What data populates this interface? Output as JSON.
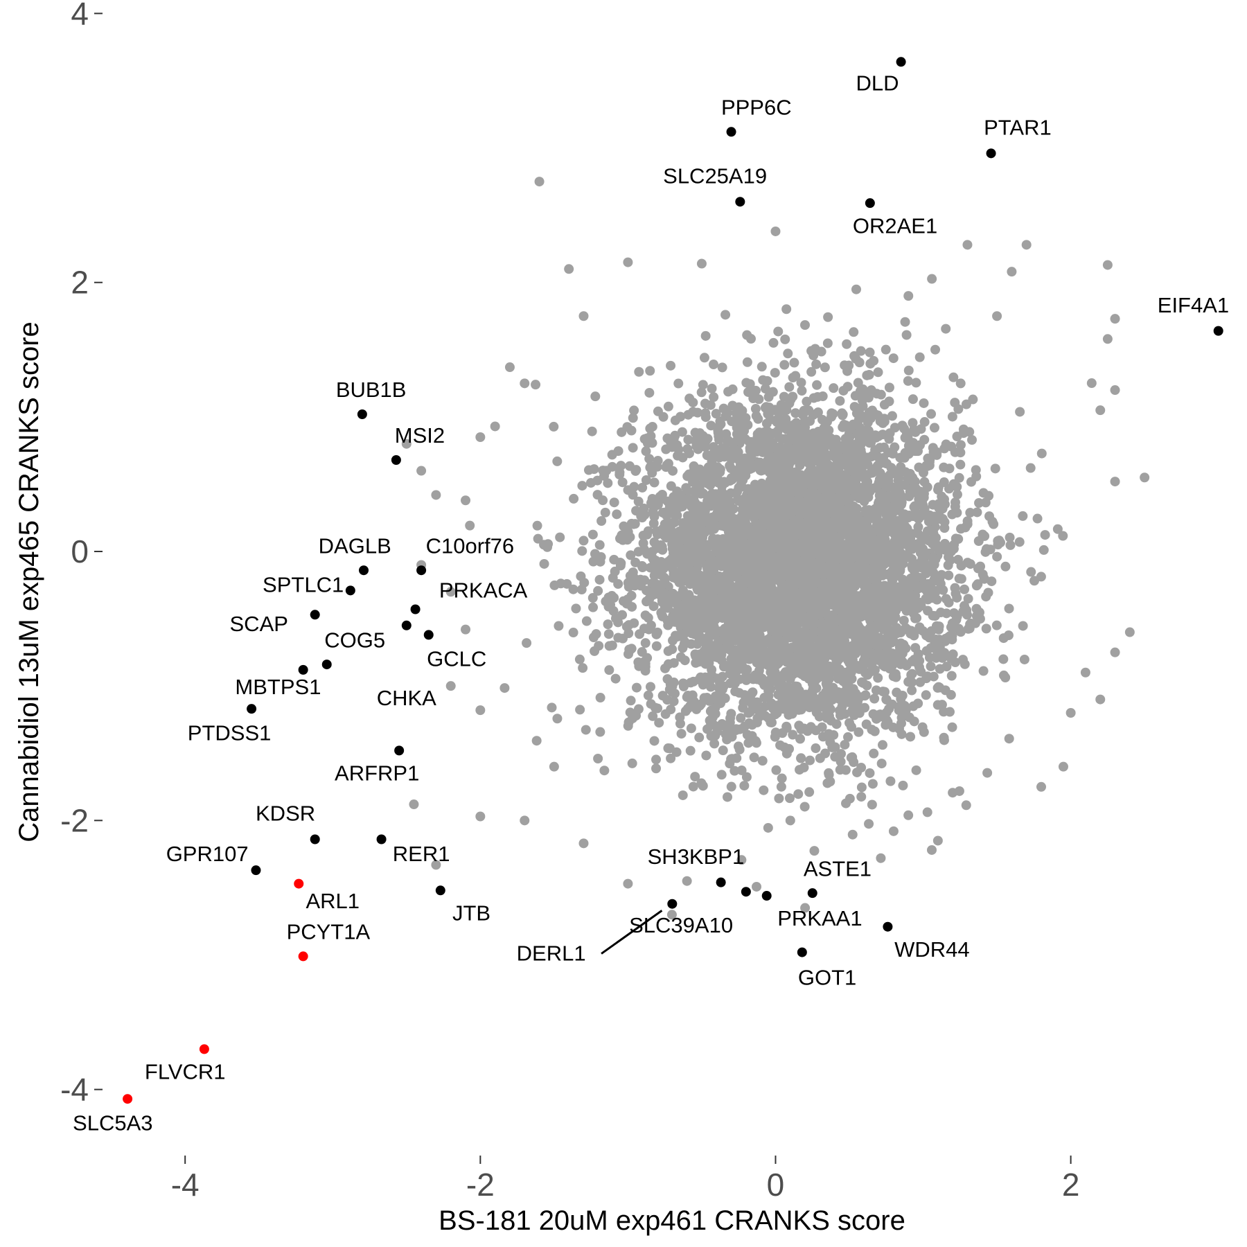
{
  "chart_data": {
    "type": "scatter",
    "title": "",
    "xlabel": "BS-181 20uM exp461 CRANKS score",
    "ylabel": "Cannabidiol 13uM exp465 CRANKS score",
    "xlim": [
      -4.55,
      3.1
    ],
    "ylim": [
      -4.45,
      4.1
    ],
    "xticks": [
      -4,
      -2,
      0,
      2
    ],
    "xtick_labels": [
      "-4",
      "-2",
      "0",
      "2"
    ],
    "yticks": [
      -4,
      -2,
      0,
      2,
      4
    ],
    "ytick_labels": [
      "-4",
      "-2",
      "0",
      "2",
      "4"
    ],
    "grid": false,
    "legend": "none",
    "colors": {
      "background_points": "#a0a0a0",
      "highlight": "#000000",
      "significant": "#ff0000"
    },
    "background_points": {
      "description_hidden": true,
      "center": [
        0.15,
        -0.1
      ],
      "spread": [
        0.55,
        0.62
      ],
      "count": 5200,
      "outliers": [
        [
          -1.6,
          2.75
        ],
        [
          0.0,
          2.38
        ],
        [
          -1.0,
          2.15
        ],
        [
          -1.4,
          2.1
        ],
        [
          -0.5,
          2.14
        ],
        [
          1.3,
          2.28
        ],
        [
          1.7,
          2.28
        ],
        [
          2.25,
          2.13
        ],
        [
          1.6,
          2.08
        ],
        [
          0.9,
          1.9
        ],
        [
          1.5,
          1.75
        ],
        [
          2.3,
          1.73
        ],
        [
          2.25,
          1.58
        ],
        [
          -1.3,
          1.75
        ],
        [
          -1.8,
          1.37
        ],
        [
          -1.7,
          1.25
        ],
        [
          2.3,
          1.2
        ],
        [
          2.2,
          1.05
        ],
        [
          -1.9,
          0.93
        ],
        [
          -2.0,
          0.85
        ],
        [
          2.5,
          0.55
        ],
        [
          2.3,
          0.52
        ],
        [
          -2.5,
          0.8
        ],
        [
          -2.4,
          0.6
        ],
        [
          -2.3,
          0.42
        ],
        [
          -2.1,
          0.38
        ],
        [
          -2.4,
          -0.1
        ],
        [
          -2.2,
          -0.3
        ],
        [
          -2.1,
          -0.58
        ],
        [
          -2.2,
          -1.0
        ],
        [
          -2.0,
          -1.18
        ],
        [
          -2.45,
          -1.88
        ],
        [
          -2.0,
          -1.97
        ],
        [
          -1.7,
          -2.0
        ],
        [
          -2.3,
          -2.33
        ],
        [
          -1.3,
          -2.17
        ],
        [
          -1.0,
          -2.47
        ],
        [
          -0.6,
          -2.45
        ],
        [
          2.0,
          -1.2
        ],
        [
          1.95,
          -1.6
        ],
        [
          2.3,
          -0.75
        ],
        [
          1.8,
          -1.75
        ],
        [
          1.1,
          -2.15
        ],
        [
          0.8,
          -2.08
        ],
        [
          0.1,
          -2.0
        ],
        [
          2.4,
          -0.6
        ],
        [
          2.2,
          -1.1
        ],
        [
          2.1,
          -0.9
        ],
        [
          -1.5,
          -1.6
        ],
        [
          0.2,
          -2.65
        ]
      ]
    },
    "highlighted_genes": [
      {
        "gene": "DLD",
        "x": 0.85,
        "y": 3.64,
        "color": "#000000"
      },
      {
        "gene": "PPP6C",
        "x": -0.3,
        "y": 3.12,
        "color": "#000000"
      },
      {
        "gene": "PTAR1",
        "x": 1.46,
        "y": 2.96,
        "color": "#000000"
      },
      {
        "gene": "SLC25A19",
        "x": -0.24,
        "y": 2.6,
        "color": "#000000"
      },
      {
        "gene": "OR2AE1",
        "x": 0.64,
        "y": 2.59,
        "color": "#000000"
      },
      {
        "gene": "EIF4A1",
        "x": 3.0,
        "y": 1.64,
        "color": "#000000"
      },
      {
        "gene": "BUB1B",
        "x": -2.8,
        "y": 1.02,
        "color": "#000000"
      },
      {
        "gene": "MSI2",
        "x": -2.57,
        "y": 0.68,
        "color": "#000000"
      },
      {
        "gene": "DAGLB",
        "x": -2.79,
        "y": -0.14,
        "color": "#000000"
      },
      {
        "gene": "C10orf76",
        "x": -2.4,
        "y": -0.14,
        "color": "#000000"
      },
      {
        "gene": "SPTLC1",
        "x": -2.88,
        "y": -0.29,
        "color": "#000000"
      },
      {
        "gene": "PRKACA",
        "x": -2.44,
        "y": -0.43,
        "color": "#000000"
      },
      {
        "gene": "SCAP",
        "x": -3.12,
        "y": -0.47,
        "color": "#000000"
      },
      {
        "gene": "COG5",
        "x": -2.5,
        "y": -0.55,
        "color": "#000000"
      },
      {
        "gene": "GCLC",
        "x": -2.35,
        "y": -0.62,
        "color": "#000000"
      },
      {
        "gene": "MBTPS1",
        "x": -3.04,
        "y": -0.84,
        "color": "#000000"
      },
      {
        "gene": "CHKA",
        "x": -3.2,
        "y": -0.88,
        "color": "#000000"
      },
      {
        "gene": "PTDSS1",
        "x": -3.55,
        "y": -1.17,
        "color": "#000000"
      },
      {
        "gene": "ARFRP1",
        "x": -2.55,
        "y": -1.48,
        "color": "#000000"
      },
      {
        "gene": "KDSR",
        "x": -3.12,
        "y": -2.14,
        "color": "#000000"
      },
      {
        "gene": "RER1",
        "x": -2.67,
        "y": -2.14,
        "color": "#000000"
      },
      {
        "gene": "GPR107",
        "x": -3.52,
        "y": -2.37,
        "color": "#000000"
      },
      {
        "gene": "ARL1",
        "x": -3.23,
        "y": -2.47,
        "color": "#ff0000"
      },
      {
        "gene": "JTB",
        "x": -2.27,
        "y": -2.52,
        "color": "#000000"
      },
      {
        "gene": "PCYT1A",
        "x": -3.2,
        "y": -3.01,
        "color": "#ff0000"
      },
      {
        "gene": "SH3KBP1",
        "x": -0.37,
        "y": -2.46,
        "color": "#000000"
      },
      {
        "gene": "SLC39A10",
        "x": -0.2,
        "y": -2.53,
        "color": "#000000"
      },
      {
        "gene": "PRKAA1",
        "x": -0.06,
        "y": -2.56,
        "color": "#000000"
      },
      {
        "gene": "ASTE1",
        "x": 0.25,
        "y": -2.54,
        "color": "#000000"
      },
      {
        "gene": "DERL1",
        "x": -0.7,
        "y": -2.62,
        "color": "#000000"
      },
      {
        "gene": "WDR44",
        "x": 0.76,
        "y": -2.79,
        "color": "#000000"
      },
      {
        "gene": "GOT1",
        "x": 0.18,
        "y": -2.98,
        "color": "#000000"
      },
      {
        "gene": "FLVCR1",
        "x": -3.87,
        "y": -3.7,
        "color": "#ff0000"
      },
      {
        "gene": "SLC5A3",
        "x": -4.39,
        "y": -4.07,
        "color": "#ff0000"
      }
    ],
    "label_positions": {
      "DLD": [
        0.69,
        3.47
      ],
      "PPP6C": [
        -0.13,
        3.29
      ],
      "PTAR1": [
        1.64,
        3.14
      ],
      "SLC25A19": [
        -0.41,
        2.78
      ],
      "OR2AE1": [
        0.81,
        2.41
      ],
      "EIF4A1": [
        2.83,
        1.82
      ],
      "BUB1B": [
        -2.74,
        1.19
      ],
      "MSI2": [
        -2.41,
        0.85
      ],
      "DAGLB": [
        -2.85,
        0.03
      ],
      "C10orf76": [
        -2.07,
        0.03
      ],
      "SPTLC1": [
        -3.2,
        -0.26
      ],
      "PRKACA": [
        -1.98,
        -0.3
      ],
      "SCAP": [
        -3.5,
        -0.55
      ],
      "COG5": [
        -2.85,
        -0.67
      ],
      "GCLC": [
        -2.16,
        -0.81
      ],
      "MBTPS1": [
        -3.37,
        -1.02
      ],
      "CHKA": [
        -2.5,
        -1.1
      ],
      "PTDSS1": [
        -3.7,
        -1.36
      ],
      "ARFRP1": [
        -2.7,
        -1.66
      ],
      "KDSR": [
        -3.32,
        -1.96
      ],
      "RER1": [
        -2.4,
        -2.26
      ],
      "GPR107": [
        -3.85,
        -2.26
      ],
      "ARL1": [
        -3.0,
        -2.61
      ],
      "JTB": [
        -2.06,
        -2.7
      ],
      "PCYT1A": [
        -3.03,
        -2.84
      ],
      "SH3KBP1": [
        -0.54,
        -2.28
      ],
      "SLC39A10": [
        -0.64,
        -2.79
      ],
      "PRKAA1": [
        0.3,
        -2.74
      ],
      "ASTE1": [
        0.42,
        -2.37
      ],
      "DERL1": [
        -1.52,
        -3.0
      ],
      "WDR44": [
        1.06,
        -2.97
      ],
      "GOT1": [
        0.35,
        -3.18
      ],
      "FLVCR1": [
        -4.0,
        -3.88
      ],
      "SLC5A3": [
        -4.49,
        -4.26
      ]
    },
    "leader_lines": [
      {
        "gene": "DERL1",
        "from": [
          -1.18,
          -2.99
        ],
        "to": [
          -0.77,
          -2.67
        ]
      }
    ]
  }
}
